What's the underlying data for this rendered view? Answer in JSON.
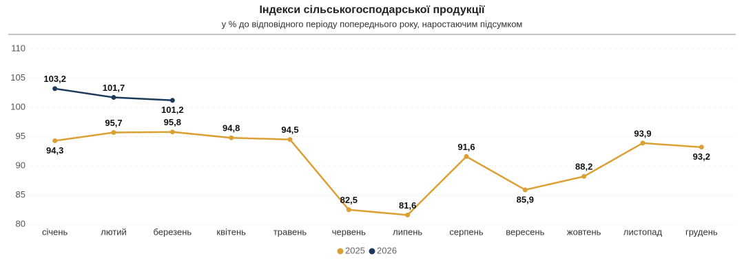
{
  "chart_data": {
    "type": "line",
    "title": "Індекси сільськогосподарської продукції",
    "subtitle": "у % до відповідного періоду попереднього року, наростаючим підсумком",
    "categories": [
      "січень",
      "лютий",
      "березень",
      "квітень",
      "травень",
      "червень",
      "липень",
      "серпень",
      "вересень",
      "жовтень",
      "листопад",
      "грудень"
    ],
    "series": [
      {
        "name": "2025",
        "color": "#dba033",
        "values": [
          94.3,
          95.7,
          95.8,
          94.8,
          94.5,
          82.5,
          81.6,
          91.6,
          85.9,
          88.2,
          93.9,
          93.2
        ],
        "value_labels": [
          "94,3",
          "95,7",
          "95,8",
          "94,8",
          "94,5",
          "82,5",
          "81,6",
          "91,6",
          "85,9",
          "88,2",
          "93,9",
          "93,2"
        ]
      },
      {
        "name": "2026",
        "color": "#1c3a5c",
        "values": [
          103.2,
          101.7,
          101.2,
          null,
          null,
          null,
          null,
          null,
          null,
          null,
          null,
          null
        ],
        "value_labels": [
          "103,2",
          "101,7",
          "101,2",
          null,
          null,
          null,
          null,
          null,
          null,
          null,
          null,
          null
        ]
      }
    ],
    "ylim": [
      80,
      110
    ],
    "yticks": [
      80,
      85,
      90,
      95,
      100,
      105,
      110
    ],
    "grid": true
  }
}
